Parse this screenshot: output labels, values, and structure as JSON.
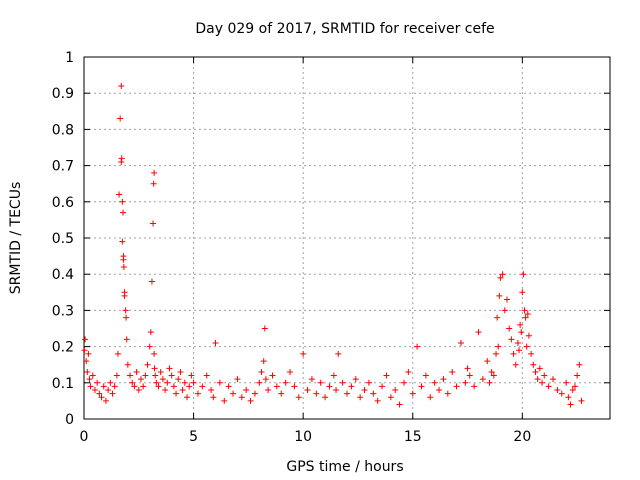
{
  "chart_data": {
    "type": "scatter",
    "title": "Day 029 of 2017, SRMTID for receiver cefe",
    "xlabel": "GPS time / hours",
    "ylabel": "SRMTID / TECUs",
    "xlim": [
      0,
      24
    ],
    "ylim": [
      0,
      1
    ],
    "xticks": [
      0,
      5,
      10,
      15,
      20
    ],
    "xtick_labels": [
      "0",
      "5",
      "10",
      "15",
      "20"
    ],
    "yticks": [
      0,
      0.1,
      0.2,
      0.3,
      0.4,
      0.5,
      0.6,
      0.7,
      0.8,
      0.9,
      1
    ],
    "ytick_labels": [
      "0",
      "0.1",
      "0.2",
      "0.3",
      "0.4",
      "0.5",
      "0.6",
      "0.7",
      "0.8",
      "0.9",
      "1"
    ],
    "grid": true,
    "marker": "+",
    "color": "#ff0000",
    "series": [
      {
        "name": "SRMTID",
        "x": [
          0.02,
          0.05,
          0.1,
          0.15,
          0.2,
          0.25,
          0.3,
          0.4,
          0.5,
          0.6,
          0.7,
          0.8,
          0.9,
          1.0,
          1.1,
          1.2,
          1.3,
          1.4,
          1.5,
          1.55,
          1.6,
          1.65,
          1.7,
          1.7,
          1.72,
          1.75,
          1.75,
          1.78,
          1.8,
          1.8,
          1.82,
          1.85,
          1.85,
          1.9,
          1.92,
          1.95,
          2.0,
          2.1,
          2.2,
          2.3,
          2.4,
          2.5,
          2.6,
          2.7,
          2.8,
          2.9,
          3.0,
          3.05,
          3.1,
          3.15,
          3.18,
          3.2,
          3.2,
          3.22,
          3.25,
          3.3,
          3.4,
          3.5,
          3.6,
          3.7,
          3.8,
          3.9,
          4.0,
          4.1,
          4.2,
          4.3,
          4.4,
          4.5,
          4.6,
          4.7,
          4.8,
          4.9,
          5.0,
          5.2,
          5.4,
          5.6,
          5.8,
          5.9,
          6.0,
          6.2,
          6.4,
          6.6,
          6.8,
          7.0,
          7.2,
          7.4,
          7.6,
          7.8,
          8.0,
          8.1,
          8.2,
          8.25,
          8.3,
          8.4,
          8.6,
          8.8,
          9.0,
          9.2,
          9.4,
          9.6,
          9.8,
          10.0,
          10.2,
          10.4,
          10.6,
          10.8,
          11.0,
          11.2,
          11.4,
          11.5,
          11.6,
          11.8,
          12.0,
          12.2,
          12.4,
          12.6,
          12.8,
          13.0,
          13.2,
          13.4,
          13.6,
          13.8,
          14.0,
          14.2,
          14.4,
          14.6,
          14.8,
          15.0,
          15.2,
          15.4,
          15.6,
          15.8,
          16.0,
          16.2,
          16.4,
          16.6,
          16.8,
          17.0,
          17.2,
          17.4,
          17.5,
          17.6,
          17.8,
          18.0,
          18.2,
          18.4,
          18.5,
          18.6,
          18.7,
          18.8,
          18.85,
          18.9,
          18.95,
          19.0,
          19.1,
          19.2,
          19.3,
          19.4,
          19.5,
          19.6,
          19.7,
          19.8,
          19.85,
          19.9,
          19.95,
          20.0,
          20.05,
          20.1,
          20.15,
          20.2,
          20.25,
          20.3,
          20.4,
          20.5,
          20.6,
          20.7,
          20.8,
          20.9,
          21.0,
          21.2,
          21.4,
          21.6,
          21.8,
          22.0,
          22.1,
          22.2,
          22.3,
          22.4,
          22.5,
          22.6,
          22.7
        ],
        "y": [
          0.19,
          0.22,
          0.16,
          0.13,
          0.18,
          0.11,
          0.09,
          0.12,
          0.08,
          0.1,
          0.07,
          0.06,
          0.09,
          0.05,
          0.08,
          0.1,
          0.07,
          0.09,
          0.12,
          0.18,
          0.62,
          0.83,
          0.92,
          0.71,
          0.72,
          0.6,
          0.49,
          0.57,
          0.45,
          0.44,
          0.42,
          0.35,
          0.34,
          0.3,
          0.28,
          0.22,
          0.15,
          0.12,
          0.1,
          0.09,
          0.13,
          0.08,
          0.11,
          0.09,
          0.12,
          0.15,
          0.2,
          0.24,
          0.38,
          0.54,
          0.65,
          0.68,
          0.18,
          0.14,
          0.12,
          0.1,
          0.09,
          0.13,
          0.11,
          0.08,
          0.1,
          0.14,
          0.12,
          0.09,
          0.07,
          0.11,
          0.13,
          0.08,
          0.1,
          0.06,
          0.09,
          0.12,
          0.1,
          0.07,
          0.09,
          0.12,
          0.08,
          0.06,
          0.21,
          0.1,
          0.05,
          0.09,
          0.07,
          0.11,
          0.06,
          0.08,
          0.05,
          0.07,
          0.1,
          0.13,
          0.16,
          0.25,
          0.11,
          0.08,
          0.12,
          0.09,
          0.07,
          0.1,
          0.13,
          0.09,
          0.06,
          0.18,
          0.08,
          0.11,
          0.07,
          0.1,
          0.06,
          0.09,
          0.12,
          0.08,
          0.18,
          0.1,
          0.07,
          0.09,
          0.11,
          0.06,
          0.08,
          0.1,
          0.07,
          0.05,
          0.09,
          0.12,
          0.06,
          0.08,
          0.04,
          0.1,
          0.13,
          0.07,
          0.2,
          0.09,
          0.12,
          0.06,
          0.1,
          0.08,
          0.11,
          0.07,
          0.13,
          0.09,
          0.21,
          0.1,
          0.14,
          0.12,
          0.09,
          0.24,
          0.11,
          0.16,
          0.1,
          0.13,
          0.12,
          0.18,
          0.28,
          0.2,
          0.34,
          0.39,
          0.4,
          0.3,
          0.33,
          0.25,
          0.22,
          0.18,
          0.15,
          0.21,
          0.19,
          0.26,
          0.24,
          0.35,
          0.4,
          0.3,
          0.28,
          0.2,
          0.29,
          0.23,
          0.18,
          0.15,
          0.13,
          0.11,
          0.14,
          0.1,
          0.12,
          0.09,
          0.11,
          0.08,
          0.07,
          0.1,
          0.06,
          0.04,
          0.08,
          0.09,
          0.12,
          0.15,
          0.05
        ]
      }
    ]
  }
}
